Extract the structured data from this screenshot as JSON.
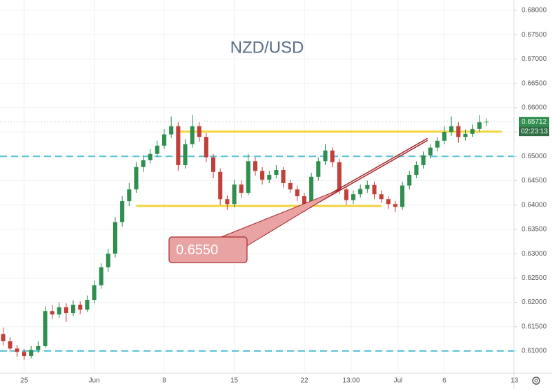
{
  "chart_data": {
    "type": "candlestick",
    "title": "NZD/USD",
    "up_color": "#2f8f4e",
    "down_color": "#c2403a",
    "open": [
      0.6135,
      0.612,
      0.6105,
      0.6098,
      0.609,
      0.6102,
      0.611,
      0.6182,
      0.6175,
      0.619,
      0.6178,
      0.6195,
      0.6185,
      0.6205,
      0.6235,
      0.6272,
      0.63,
      0.6365,
      0.6408,
      0.6432,
      0.6478,
      0.6492,
      0.6505,
      0.6522,
      0.6545,
      0.6562,
      0.6482,
      0.6525,
      0.6562,
      0.654,
      0.6498,
      0.6468,
      0.6412,
      0.6402,
      0.6442,
      0.6425,
      0.649,
      0.647,
      0.6452,
      0.6462,
      0.6472,
      0.6445,
      0.6432,
      0.6418,
      0.64,
      0.6458,
      0.649,
      0.6512,
      0.6488,
      0.6432,
      0.641,
      0.6422,
      0.6433,
      0.6441,
      0.6422,
      0.6412,
      0.6402,
      0.6396,
      0.644,
      0.6462,
      0.6482,
      0.6502,
      0.6518,
      0.6532,
      0.655,
      0.6562,
      0.654,
      0.6546,
      0.6556,
      0.657
    ],
    "high": [
      0.6148,
      0.6128,
      0.6112,
      0.6104,
      0.611,
      0.612,
      0.6192,
      0.6195,
      0.62,
      0.6198,
      0.6204,
      0.6202,
      0.6214,
      0.6245,
      0.628,
      0.631,
      0.6375,
      0.6418,
      0.6445,
      0.6488,
      0.6502,
      0.6515,
      0.6532,
      0.6556,
      0.6582,
      0.657,
      0.6535,
      0.6585,
      0.657,
      0.6548,
      0.6505,
      0.6475,
      0.642,
      0.6452,
      0.645,
      0.6505,
      0.6498,
      0.6478,
      0.647,
      0.6482,
      0.6478,
      0.6452,
      0.644,
      0.6425,
      0.6466,
      0.6498,
      0.6525,
      0.6518,
      0.6495,
      0.644,
      0.643,
      0.6442,
      0.645,
      0.6448,
      0.643,
      0.6418,
      0.6408,
      0.6448,
      0.647,
      0.649,
      0.651,
      0.6525,
      0.654,
      0.6562,
      0.6582,
      0.657,
      0.6555,
      0.6565,
      0.6585,
      0.6578
    ],
    "low": [
      0.6112,
      0.6098,
      0.6088,
      0.6082,
      0.6085,
      0.6096,
      0.6106,
      0.6165,
      0.6168,
      0.616,
      0.6172,
      0.6176,
      0.618,
      0.6198,
      0.6228,
      0.6262,
      0.6292,
      0.6355,
      0.6398,
      0.6425,
      0.6468,
      0.6485,
      0.6498,
      0.6515,
      0.6538,
      0.647,
      0.6475,
      0.6518,
      0.653,
      0.6488,
      0.6455,
      0.64,
      0.639,
      0.6395,
      0.6415,
      0.642,
      0.646,
      0.6442,
      0.6445,
      0.6455,
      0.6436,
      0.6425,
      0.6408,
      0.6385,
      0.6394,
      0.645,
      0.6482,
      0.6478,
      0.6422,
      0.64,
      0.6402,
      0.6415,
      0.6425,
      0.6412,
      0.6404,
      0.6392,
      0.6385,
      0.639,
      0.6432,
      0.6455,
      0.6475,
      0.6495,
      0.651,
      0.6525,
      0.6542,
      0.6528,
      0.6532,
      0.654,
      0.655,
      0.6562
    ],
    "close": [
      0.612,
      0.6105,
      0.6098,
      0.609,
      0.6102,
      0.611,
      0.6182,
      0.6175,
      0.619,
      0.6178,
      0.6195,
      0.6185,
      0.6205,
      0.6235,
      0.6272,
      0.63,
      0.6365,
      0.6408,
      0.6432,
      0.6478,
      0.6492,
      0.6505,
      0.6522,
      0.6545,
      0.6562,
      0.6482,
      0.6525,
      0.6562,
      0.654,
      0.6498,
      0.6468,
      0.6412,
      0.6402,
      0.6442,
      0.6425,
      0.649,
      0.647,
      0.6452,
      0.6462,
      0.6472,
      0.6445,
      0.6432,
      0.6418,
      0.64,
      0.6458,
      0.649,
      0.6512,
      0.6488,
      0.6432,
      0.641,
      0.6422,
      0.6433,
      0.6441,
      0.6422,
      0.6412,
      0.6402,
      0.6396,
      0.644,
      0.6462,
      0.6482,
      0.6502,
      0.6518,
      0.6532,
      0.655,
      0.6562,
      0.654,
      0.6546,
      0.6556,
      0.657,
      0.65712
    ],
    "xlim": [
      -0.45,
      72.95
    ],
    "xticks": [
      {
        "value": 3,
        "label": "25"
      },
      {
        "value": 13,
        "label": "Jun"
      },
      {
        "value": 23,
        "label": "8"
      },
      {
        "value": 33,
        "label": "15"
      },
      {
        "value": 43,
        "label": "22"
      },
      {
        "value": 49.7,
        "label": "13:00"
      },
      {
        "value": 56.4,
        "label": "Jul"
      },
      {
        "value": 63,
        "label": "6"
      },
      {
        "value": 73,
        "label": "13"
      }
    ],
    "ylim": [
      0.60545,
      0.68213
    ],
    "yticks": [
      {
        "value": 0.61,
        "label": "0.61000"
      },
      {
        "value": 0.615,
        "label": "0.61500"
      },
      {
        "value": 0.62,
        "label": "0.62000"
      },
      {
        "value": 0.625,
        "label": "0.62500"
      },
      {
        "value": 0.63,
        "label": "0.63000"
      },
      {
        "value": 0.635,
        "label": "0.63500"
      },
      {
        "value": 0.64,
        "label": "0.64000"
      },
      {
        "value": 0.645,
        "label": "0.64500"
      },
      {
        "value": 0.65,
        "label": "0.65000"
      },
      {
        "value": 0.655,
        "label": "0.65500"
      },
      {
        "value": 0.66,
        "label": "0.66000"
      },
      {
        "value": 0.665,
        "label": "0.66500"
      },
      {
        "value": 0.67,
        "label": "0.67000"
      },
      {
        "value": 0.675,
        "label": "0.67500"
      },
      {
        "value": 0.68,
        "label": "0.68000"
      }
    ],
    "grid": true,
    "last_price": 0.65712,
    "countdown": "02:23:13",
    "levels": [
      {
        "value": 0.6551,
        "x": [
          25.0,
          71.2
        ],
        "color": "#f2d43d",
        "style": "solid"
      },
      {
        "value": 0.6398,
        "x": [
          19.0,
          54.0
        ],
        "color": "#f2d43d",
        "style": "solid"
      },
      {
        "value": 0.65,
        "color": "#5bc3d6",
        "style": "dashed"
      },
      {
        "value": 0.61,
        "color": "#5bc3d6",
        "style": "dashed"
      }
    ],
    "trendline": {
      "x": [
        42.9,
        60.6
      ],
      "y": [
        0.6392,
        0.6537
      ],
      "color": "#a8282b"
    },
    "callout": {
      "text": "0.6550"
    }
  }
}
